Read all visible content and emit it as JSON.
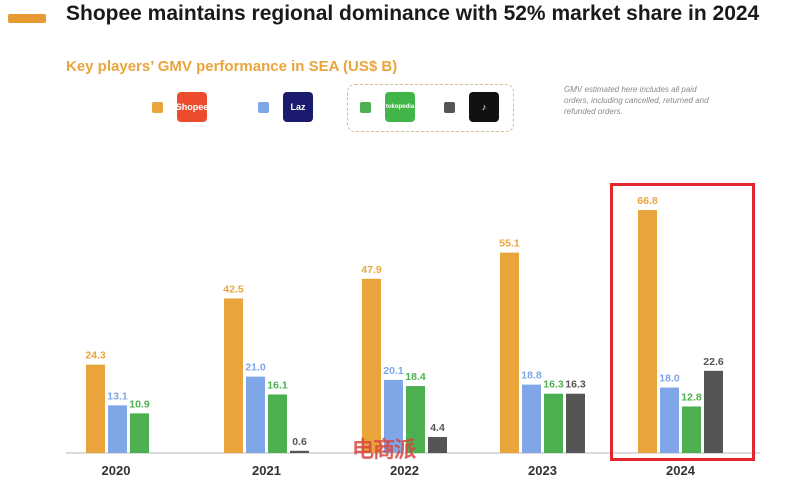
{
  "title": "Shopee maintains regional dominance with 52% market share in 2024",
  "subtitle": "Key players’ GMV performance in SEA (US$ B)",
  "note": "GMV estimated here includes all paid orders, including cancelled, returned and refunded orders.",
  "watermark": "电商派",
  "legend": [
    {
      "logo_text": "Shopee",
      "color": "#e9a53c",
      "logo_color": "#ee4d2d",
      "icon": "shopee-logo-icon"
    },
    {
      "logo_text": "Laz",
      "color": "#7fa6e6",
      "logo_color": "#1a1a6e",
      "icon": "lazada-logo-icon"
    },
    {
      "logo_text": "tokopedia",
      "color": "#4caf50",
      "logo_color": "#42b549",
      "icon": "tokopedia-logo-icon"
    },
    {
      "logo_text": "♪",
      "color": "#555555",
      "logo_color": "#111111",
      "icon": "tiktok-logo-icon"
    }
  ],
  "chart_data": {
    "type": "bar",
    "title": "Key players’ GMV performance in SEA (US$ B)",
    "categories": [
      "2020",
      "2021",
      "2022",
      "2023",
      "2024"
    ],
    "series": [
      {
        "values": [
          24.3,
          42.5,
          47.9,
          55.1,
          66.8
        ],
        "color": "#e9a53c",
        "label_color": "#e9a53c"
      },
      {
        "values": [
          13.1,
          21.0,
          20.1,
          18.8,
          18.0
        ],
        "color": "#7fa6e6",
        "label_color": "#7fa6e6"
      },
      {
        "values": [
          10.9,
          16.1,
          18.4,
          16.3,
          12.8
        ],
        "color": "#4caf50",
        "label_color": "#4caf50"
      },
      {
        "values": [
          null,
          0.6,
          4.4,
          16.3,
          22.6
        ],
        "color": "#555555",
        "label_color": "#555555"
      }
    ],
    "value_labels": [
      [
        "24.3",
        "42.5",
        "47.9",
        "55.1",
        "66.8"
      ],
      [
        "13.1",
        "21.0",
        "20.1",
        "18.8",
        "18.0"
      ],
      [
        "10.9",
        "16.1",
        "18.4",
        "16.3",
        "12.8"
      ],
      [
        "",
        "0.6",
        "4.4",
        "16.3",
        "22.6"
      ]
    ],
    "ylim": [
      0,
      80
    ],
    "grid": false,
    "highlight_category": "2024"
  }
}
